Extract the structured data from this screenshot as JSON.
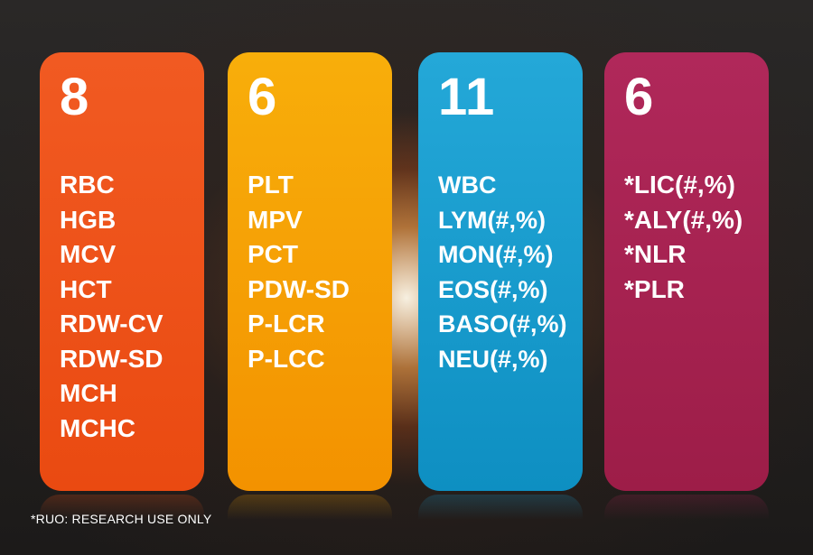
{
  "cards": [
    {
      "count": "8",
      "color": "#ee5219",
      "items": [
        "RBC",
        "HGB",
        "MCV",
        "HCT",
        "RDW-CV",
        "RDW-SD",
        "MCH",
        "MCHC"
      ]
    },
    {
      "count": "6",
      "color": "#f5a004",
      "items": [
        "PLT",
        "MPV",
        "PCT",
        "PDW-SD",
        "P-LCR",
        "P-LCC"
      ]
    },
    {
      "count": "11",
      "color": "#1a9dcf",
      "items": [
        "WBC",
        "LYM(#,%)",
        "MON(#,%)",
        "EOS(#,%)",
        "BASO(#,%)",
        "NEU(#,%)"
      ]
    },
    {
      "count": "6",
      "color": "#a72350",
      "items": [
        "*LIC(#,%)",
        "*ALY(#,%)",
        "*NLR",
        "*PLR"
      ]
    }
  ],
  "footnote": "*RUO: RESEARCH USE ONLY"
}
